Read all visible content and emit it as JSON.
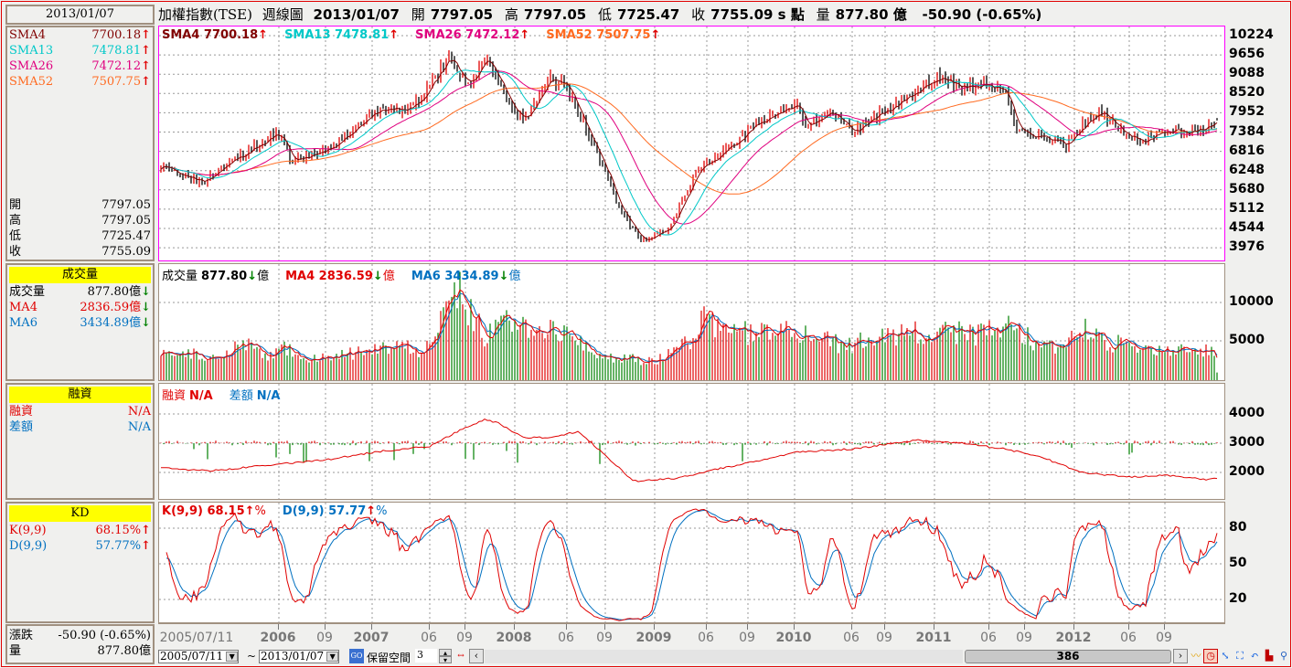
{
  "left": {
    "date": "2013/01/07",
    "sma": [
      {
        "label": "SMA4",
        "value": "7700.18",
        "color": "#800000"
      },
      {
        "label": "SMA13",
        "value": "7478.81",
        "color": "#00c8c8"
      },
      {
        "label": "SMA26",
        "value": "7472.12",
        "color": "#e0007f"
      },
      {
        "label": "SMA52",
        "value": "7507.75",
        "color": "#ff6a20"
      }
    ],
    "ohlc": [
      {
        "label": "開",
        "value": "7797.05"
      },
      {
        "label": "高",
        "value": "7797.05"
      },
      {
        "label": "低",
        "value": "7725.47"
      },
      {
        "label": "收",
        "value": "7755.09"
      }
    ],
    "volume": {
      "title": "成交量",
      "rows": [
        {
          "label": "成交量",
          "value": "877.80億",
          "arrow": "↓",
          "color": "#000"
        },
        {
          "label": "MA4",
          "value": "2836.59億",
          "arrow": "↓",
          "color": "#e00000"
        },
        {
          "label": "MA6",
          "value": "3434.89億",
          "arrow": "↓",
          "color": "#0070c0"
        }
      ]
    },
    "margin": {
      "title": "融資",
      "rows": [
        {
          "label": "融資",
          "value": "N/A",
          "color": "#e00000"
        },
        {
          "label": "差額",
          "value": "N/A",
          "color": "#0070c0"
        }
      ]
    },
    "kd": {
      "title": "KD",
      "rows": [
        {
          "label": "K(9,9)",
          "value": "68.15%",
          "arrow": "↑",
          "color": "#e00000"
        },
        {
          "label": "D(9,9)",
          "value": "57.77%",
          "arrow": "↑",
          "color": "#0070c0"
        }
      ]
    },
    "change": {
      "label": "漲跌",
      "value": "-50.90 (-0.65%)"
    },
    "vol": {
      "label": "量",
      "value": "877.80億"
    }
  },
  "title": {
    "name": "加權指數(TSE)",
    "type": "週線圖",
    "date": "2013/01/07",
    "open_l": "開",
    "open": "7797.05",
    "high_l": "高",
    "high": "7797.05",
    "low_l": "低",
    "low": "7725.47",
    "close_l": "收",
    "close": "7755.09 s 點",
    "vol_l": "量",
    "vol": "877.80 億",
    "change": "-50.90 (-0.65%)"
  },
  "legends": {
    "price": [
      {
        "t": "SMA4 7700.18",
        "a": "↑",
        "c": "#800000"
      },
      {
        "t": "SMA13 7478.81",
        "a": "↑",
        "c": "#00c8c8"
      },
      {
        "t": "SMA26 7472.12",
        "a": "↑",
        "c": "#e0007f"
      },
      {
        "t": "SMA52 7507.75",
        "a": "↑",
        "c": "#ff6a20"
      }
    ],
    "volume": [
      {
        "p": "成交量",
        "t": "877.80",
        "a": "↓",
        "u": "億",
        "c": "#000"
      },
      {
        "p": "",
        "t": "MA4 2836.59",
        "a": "↓",
        "u": "億",
        "c": "#e00000"
      },
      {
        "p": "",
        "t": "MA6 3434.89",
        "a": "↓",
        "u": "億",
        "c": "#0070c0"
      }
    ],
    "margin": [
      {
        "p": "融資",
        "t": "N/A",
        "c": "#e00000"
      },
      {
        "p": "差額",
        "t": "N/A",
        "c": "#0070c0"
      }
    ],
    "kd": [
      {
        "t": "K(9,9) 68.15",
        "a": "↑",
        "u": "%",
        "c": "#e00000"
      },
      {
        "t": "D(9,9) 57.77",
        "a": "↑",
        "u": "%",
        "c": "#0070c0"
      }
    ]
  },
  "controls": {
    "from": "2005/07/11",
    "tilde": "~",
    "to": "2013/01/07",
    "reserve_label": "保留空間",
    "reserve_value": "3",
    "scroll_value": "386"
  },
  "chart_data": {
    "type": "line",
    "title": "加權指數(TSE) 週線圖",
    "weeks": 386,
    "x_ticks": [
      {
        "w": 0,
        "t": "2005/07/11",
        "b": false
      },
      {
        "w": 43,
        "t": "2006",
        "b": true
      },
      {
        "w": 60,
        "t": "09",
        "b": false
      },
      {
        "w": 77,
        "t": "2007",
        "b": true
      },
      {
        "w": 98,
        "t": "06",
        "b": false
      },
      {
        "w": 111,
        "t": "09",
        "b": false
      },
      {
        "w": 129,
        "t": "2008",
        "b": true
      },
      {
        "w": 148,
        "t": "06",
        "b": false
      },
      {
        "w": 162,
        "t": "09",
        "b": false
      },
      {
        "w": 180,
        "t": "2009",
        "b": true
      },
      {
        "w": 199,
        "t": "06",
        "b": false
      },
      {
        "w": 214,
        "t": "09",
        "b": false
      },
      {
        "w": 231,
        "t": "2010",
        "b": true
      },
      {
        "w": 252,
        "t": "06",
        "b": false
      },
      {
        "w": 264,
        "t": "09",
        "b": false
      },
      {
        "w": 282,
        "t": "2011",
        "b": true
      },
      {
        "w": 302,
        "t": "06",
        "b": false
      },
      {
        "w": 315,
        "t": "09",
        "b": false
      },
      {
        "w": 333,
        "t": "2012",
        "b": true
      },
      {
        "w": 353,
        "t": "06",
        "b": false
      },
      {
        "w": 366,
        "t": "09",
        "b": false
      }
    ],
    "price_ticks": [
      10224,
      9656,
      9088,
      8520,
      7952,
      7384,
      6816,
      6248,
      5680,
      5112,
      4544,
      3976
    ],
    "volume_ticks": [
      10000,
      5000
    ],
    "margin_ticks": [
      4000,
      3000,
      2000
    ],
    "kd_ticks": [
      80,
      50,
      20
    ],
    "price_waypoints": [
      [
        0,
        6400
      ],
      [
        15,
        5900
      ],
      [
        28,
        6600
      ],
      [
        42,
        7400
      ],
      [
        48,
        6500
      ],
      [
        62,
        6900
      ],
      [
        78,
        8000
      ],
      [
        92,
        8100
      ],
      [
        105,
        9600
      ],
      [
        112,
        8700
      ],
      [
        118,
        9600
      ],
      [
        123,
        8800
      ],
      [
        132,
        7700
      ],
      [
        142,
        9000
      ],
      [
        148,
        8700
      ],
      [
        155,
        7500
      ],
      [
        168,
        5000
      ],
      [
        175,
        4200
      ],
      [
        185,
        4500
      ],
      [
        195,
        6200
      ],
      [
        208,
        7000
      ],
      [
        222,
        7900
      ],
      [
        232,
        8200
      ],
      [
        235,
        7600
      ],
      [
        245,
        8000
      ],
      [
        252,
        7400
      ],
      [
        262,
        7900
      ],
      [
        272,
        8400
      ],
      [
        282,
        9000
      ],
      [
        292,
        8700
      ],
      [
        302,
        8800
      ],
      [
        308,
        8500
      ],
      [
        312,
        7500
      ],
      [
        322,
        7200
      ],
      [
        330,
        7000
      ],
      [
        335,
        7500
      ],
      [
        342,
        8000
      ],
      [
        352,
        7300
      ],
      [
        358,
        7100
      ],
      [
        368,
        7500
      ],
      [
        375,
        7300
      ],
      [
        382,
        7600
      ],
      [
        385,
        7755
      ]
    ],
    "volume_waypoints": [
      [
        0,
        3500
      ],
      [
        20,
        3000
      ],
      [
        30,
        5000
      ],
      [
        38,
        2800
      ],
      [
        45,
        4000
      ],
      [
        52,
        2500
      ],
      [
        75,
        3500
      ],
      [
        88,
        4200
      ],
      [
        95,
        3500
      ],
      [
        103,
        8500
      ],
      [
        108,
        11500
      ],
      [
        118,
        5500
      ],
      [
        125,
        7000
      ],
      [
        140,
        6500
      ],
      [
        150,
        5000
      ],
      [
        162,
        3000
      ],
      [
        180,
        2200
      ],
      [
        192,
        4500
      ],
      [
        198,
        8000
      ],
      [
        205,
        5800
      ],
      [
        230,
        6000
      ],
      [
        250,
        4200
      ],
      [
        262,
        5500
      ],
      [
        280,
        6000
      ],
      [
        300,
        5800
      ],
      [
        310,
        7200
      ],
      [
        320,
        4300
      ],
      [
        330,
        3500
      ],
      [
        335,
        7500
      ],
      [
        345,
        4800
      ],
      [
        360,
        3500
      ],
      [
        375,
        3800
      ],
      [
        382,
        4000
      ],
      [
        385,
        2800
      ]
    ],
    "margin_waypoints": [
      [
        0,
        2150
      ],
      [
        18,
        2050
      ],
      [
        45,
        2300
      ],
      [
        62,
        2450
      ],
      [
        78,
        2700
      ],
      [
        98,
        2900
      ],
      [
        108,
        3400
      ],
      [
        118,
        3800
      ],
      [
        123,
        3700
      ],
      [
        132,
        3200
      ],
      [
        142,
        3200
      ],
      [
        152,
        3400
      ],
      [
        162,
        2600
      ],
      [
        172,
        1700
      ],
      [
        188,
        1800
      ],
      [
        202,
        2100
      ],
      [
        218,
        2400
      ],
      [
        232,
        2700
      ],
      [
        252,
        2800
      ],
      [
        275,
        3100
      ],
      [
        292,
        3000
      ],
      [
        308,
        2800
      ],
      [
        322,
        2500
      ],
      [
        335,
        2000
      ],
      [
        352,
        1850
      ],
      [
        368,
        1900
      ],
      [
        382,
        1750
      ],
      [
        385,
        1800
      ]
    ],
    "series_colors": {
      "up": "#e00000",
      "down": "#000000",
      "vol_down": "#008000",
      "sma4": "#800000",
      "sma13": "#00c8c8",
      "sma26": "#e0007f",
      "sma52": "#ff6a20",
      "ma4": "#e00000",
      "ma6": "#0070c0",
      "k": "#e00000",
      "d": "#0070c0",
      "margin": "#e00000"
    }
  }
}
